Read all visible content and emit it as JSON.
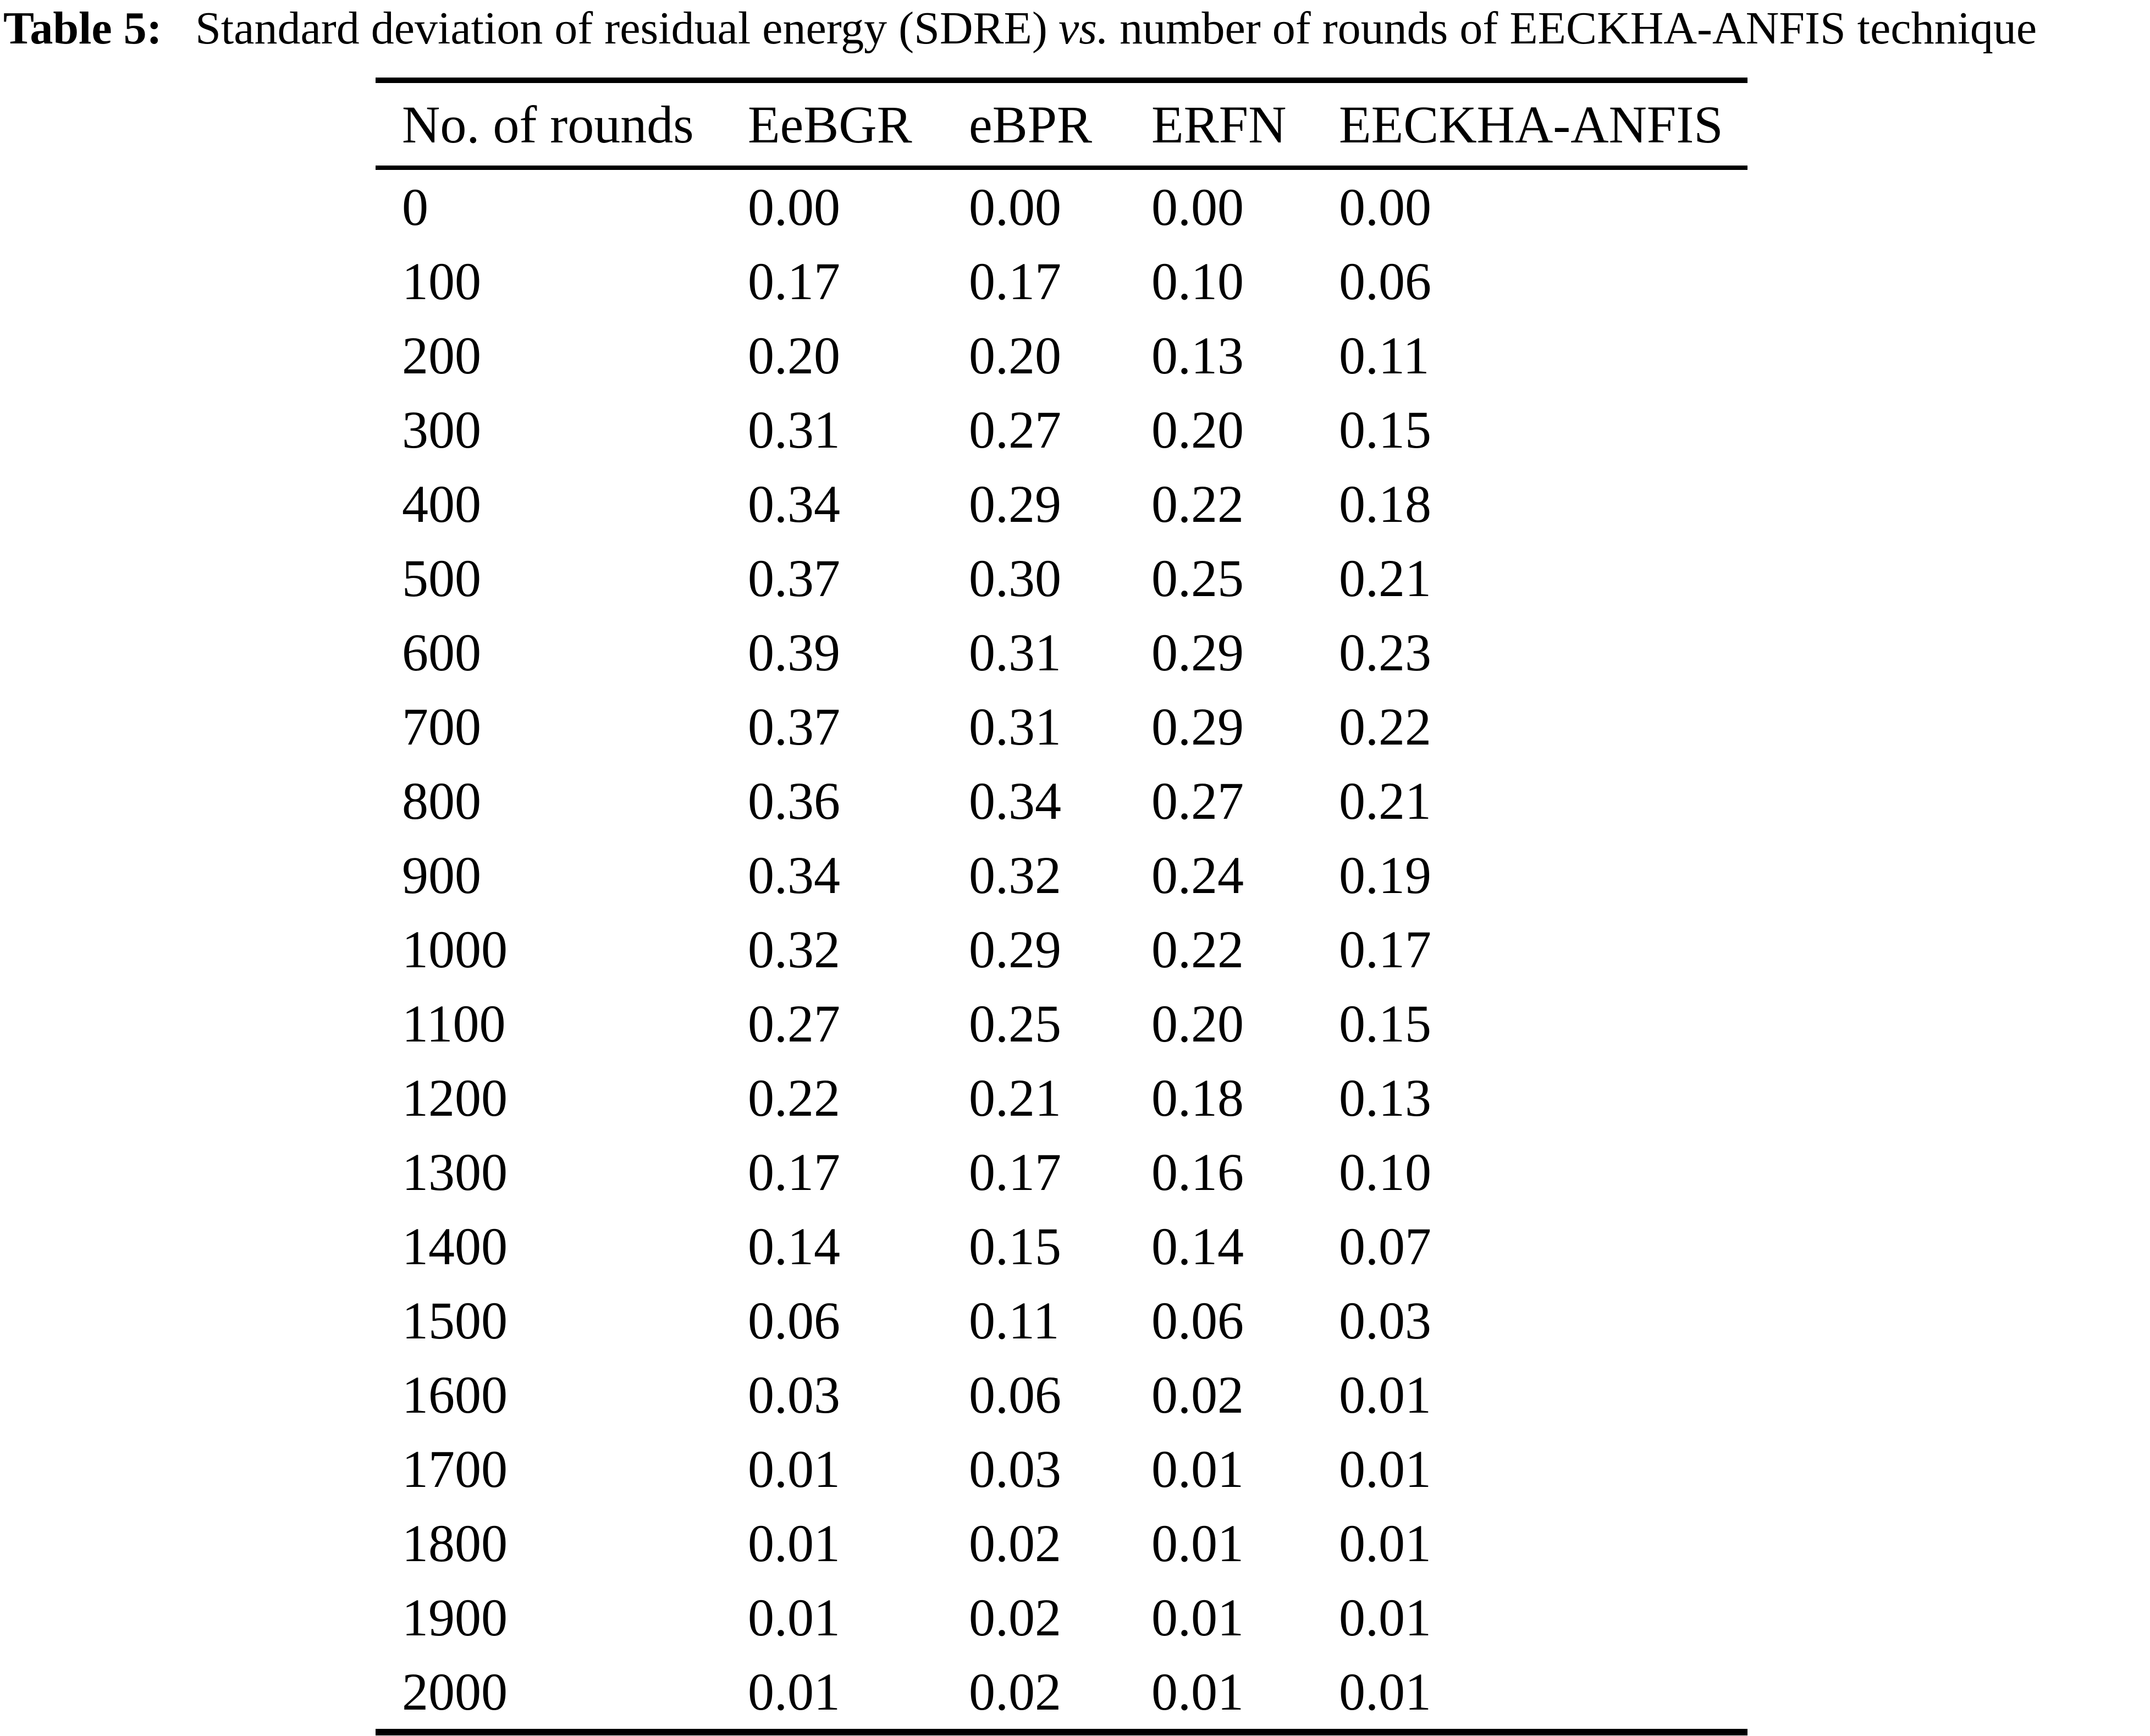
{
  "caption": {
    "label": "Table 5:",
    "before_vs": "Standard deviation of residual energy (SDRE)",
    "vs": "vs.",
    "after_vs": "number of rounds of EECKHA-ANFIS technique"
  },
  "table": {
    "headers": [
      "No. of rounds",
      "EeBGR",
      "eBPR",
      "ERFN",
      "EECKHA-ANFIS"
    ],
    "rows": [
      [
        "0",
        "0.00",
        "0.00",
        "0.00",
        "0.00"
      ],
      [
        "100",
        "0.17",
        "0.17",
        "0.10",
        "0.06"
      ],
      [
        "200",
        "0.20",
        "0.20",
        "0.13",
        "0.11"
      ],
      [
        "300",
        "0.31",
        "0.27",
        "0.20",
        "0.15"
      ],
      [
        "400",
        "0.34",
        "0.29",
        "0.22",
        "0.18"
      ],
      [
        "500",
        "0.37",
        "0.30",
        "0.25",
        "0.21"
      ],
      [
        "600",
        "0.39",
        "0.31",
        "0.29",
        "0.23"
      ],
      [
        "700",
        "0.37",
        "0.31",
        "0.29",
        "0.22"
      ],
      [
        "800",
        "0.36",
        "0.34",
        "0.27",
        "0.21"
      ],
      [
        "900",
        "0.34",
        "0.32",
        "0.24",
        "0.19"
      ],
      [
        "1000",
        "0.32",
        "0.29",
        "0.22",
        "0.17"
      ],
      [
        "1100",
        "0.27",
        "0.25",
        "0.20",
        "0.15"
      ],
      [
        "1200",
        "0.22",
        "0.21",
        "0.18",
        "0.13"
      ],
      [
        "1300",
        "0.17",
        "0.17",
        "0.16",
        "0.10"
      ],
      [
        "1400",
        "0.14",
        "0.15",
        "0.14",
        "0.07"
      ],
      [
        "1500",
        "0.06",
        "0.11",
        "0.06",
        "0.03"
      ],
      [
        "1600",
        "0.03",
        "0.06",
        "0.02",
        "0.01"
      ],
      [
        "1700",
        "0.01",
        "0.03",
        "0.01",
        "0.01"
      ],
      [
        "1800",
        "0.01",
        "0.02",
        "0.01",
        "0.01"
      ],
      [
        "1900",
        "0.01",
        "0.02",
        "0.01",
        "0.01"
      ],
      [
        "2000",
        "0.01",
        "0.02",
        "0.01",
        "0.01"
      ]
    ]
  },
  "colors": {
    "text": "#000000",
    "background": "#ffffff"
  }
}
